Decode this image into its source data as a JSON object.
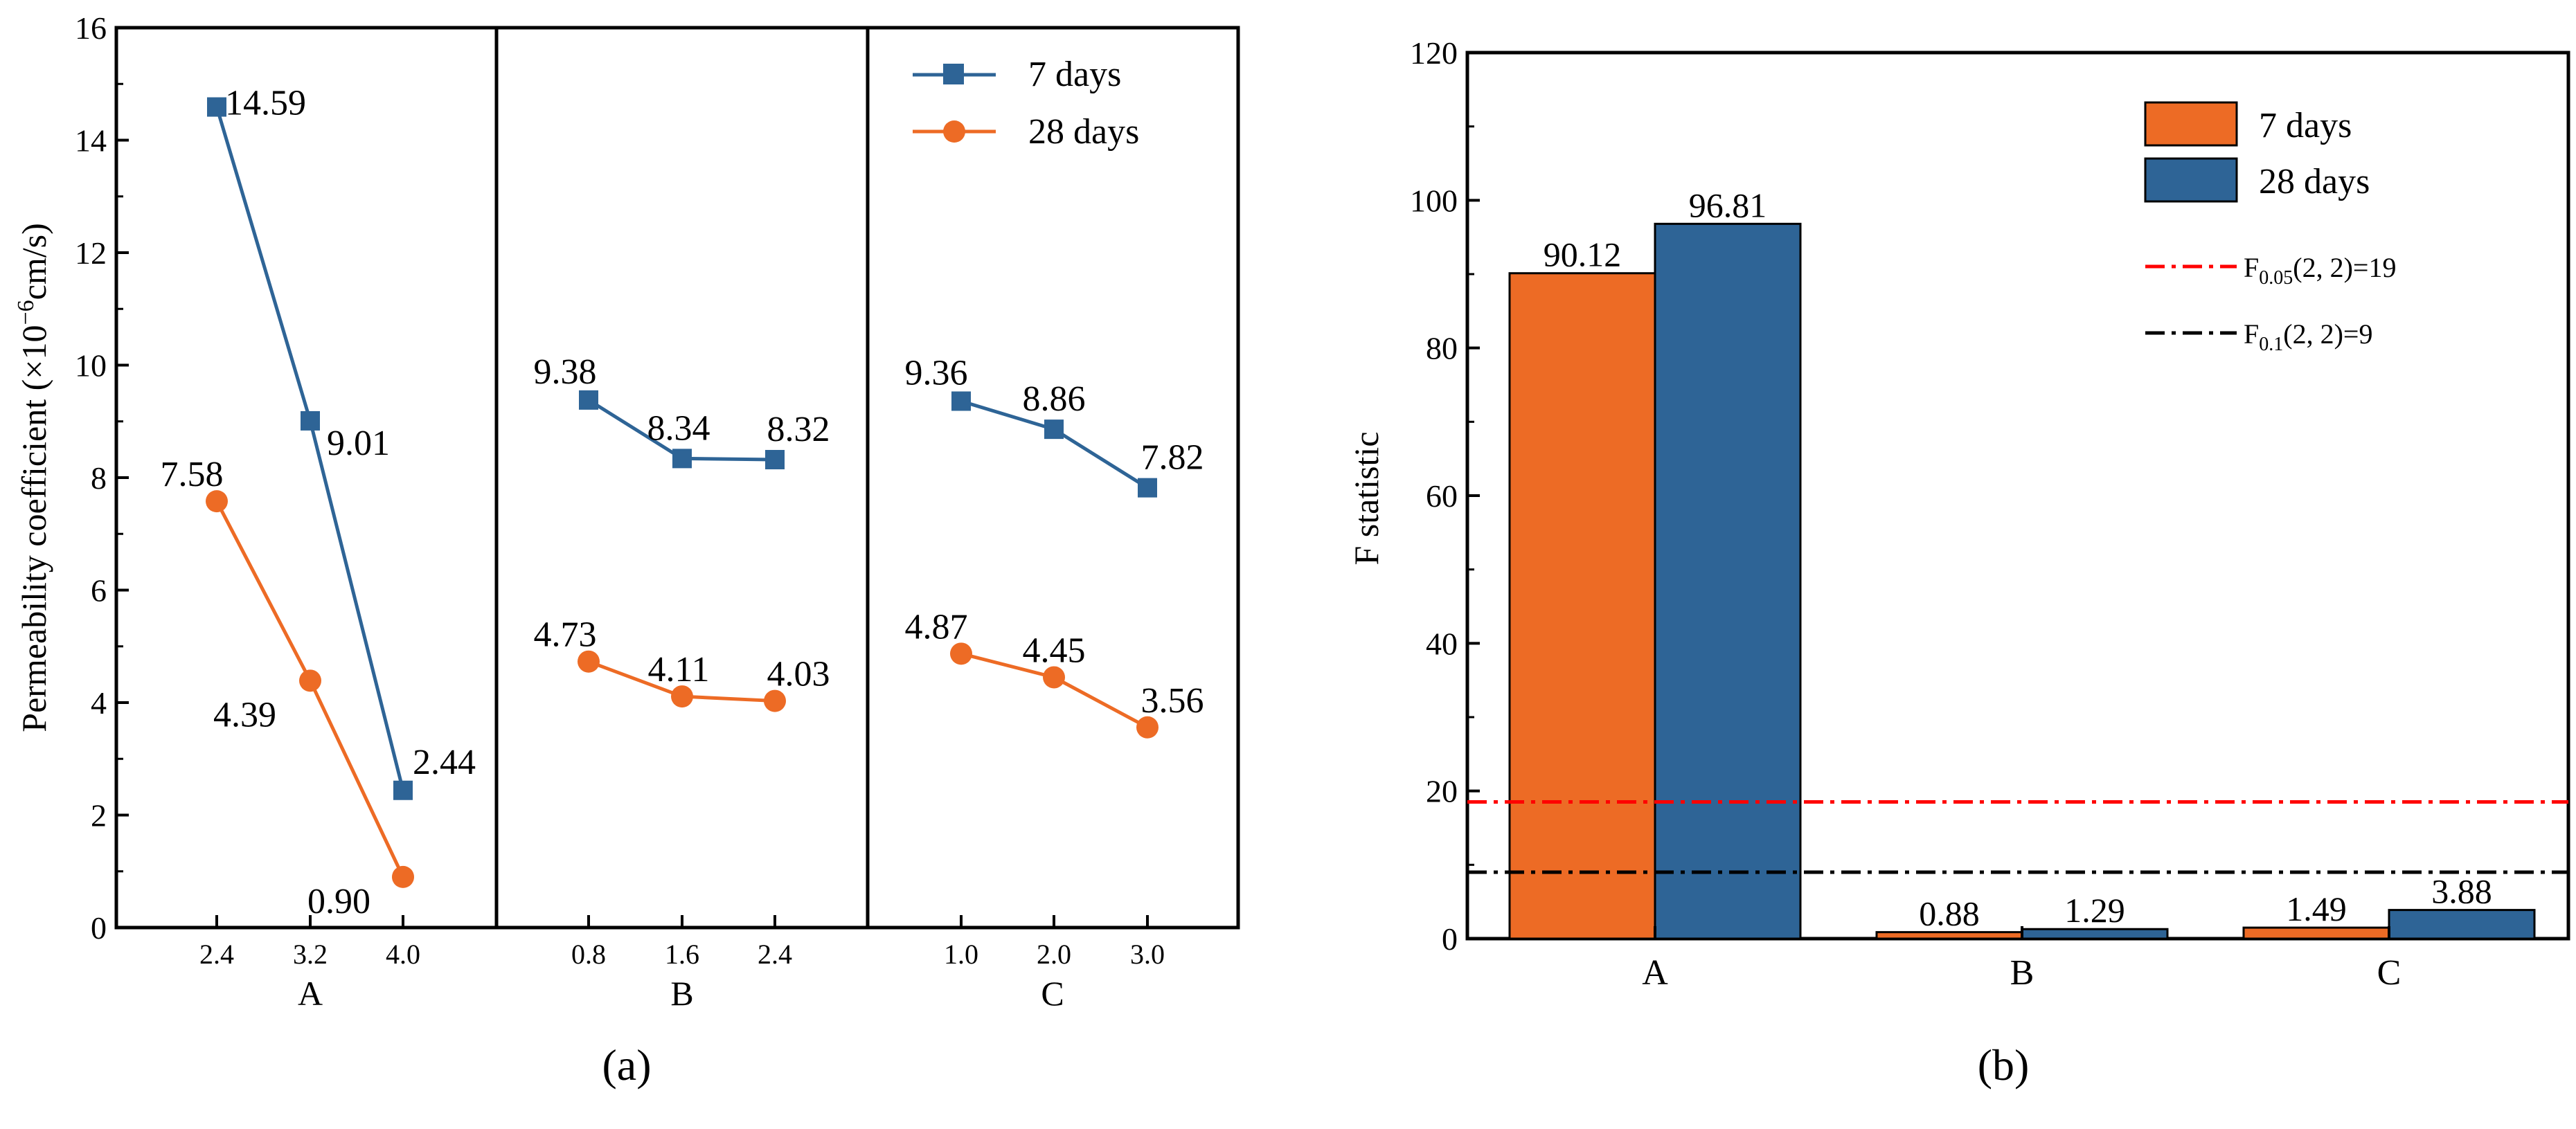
{
  "colors": {
    "blue": "#2E6496",
    "orange": "#ED6B25",
    "red_line": "#FF0000",
    "black_line": "#000000"
  },
  "chart_data": [
    {
      "panel": "(a)",
      "type": "line",
      "ylabel": "Permeability coefficient (×10",
      "ylabel_sup": "−6",
      "ylabel_tail": "cm/s)",
      "ylim": [
        0,
        16
      ],
      "yticks": [
        "0",
        "2",
        "4",
        "6",
        "8",
        "10",
        "12",
        "14",
        "16"
      ],
      "grid": false,
      "legend_placement": "top-right",
      "groups": [
        {
          "factor": "A",
          "x": [
            "2.4",
            "3.2",
            "4.0"
          ]
        },
        {
          "factor": "B",
          "x": [
            "0.8",
            "1.6",
            "2.4"
          ]
        },
        {
          "factor": "C",
          "x": [
            "1.0",
            "2.0",
            "3.0"
          ]
        }
      ],
      "series": [
        {
          "name": "7 days",
          "marker": "square",
          "color": "#2E6496",
          "labels": [
            [
              "14.59",
              "9.01",
              "2.44"
            ],
            [
              "9.38",
              "8.34",
              "8.32"
            ],
            [
              "9.36",
              "8.86",
              "7.82"
            ]
          ],
          "values": [
            [
              14.59,
              9.01,
              2.44
            ],
            [
              9.38,
              8.34,
              8.32
            ],
            [
              9.36,
              8.86,
              7.82
            ]
          ]
        },
        {
          "name": "28 days",
          "marker": "circle",
          "color": "#ED6B25",
          "labels": [
            [
              "7.58",
              "4.39",
              "0.90"
            ],
            [
              "4.73",
              "4.11",
              "4.03"
            ],
            [
              "4.87",
              "4.45",
              "3.56"
            ]
          ],
          "values": [
            [
              7.58,
              4.39,
              0.9
            ],
            [
              4.73,
              4.11,
              4.03
            ],
            [
              4.87,
              4.45,
              3.56
            ]
          ]
        }
      ]
    },
    {
      "panel": "(b)",
      "type": "bar",
      "ylabel": "F statistic",
      "ylim": [
        0,
        120
      ],
      "yticks": [
        "0",
        "20",
        "40",
        "60",
        "80",
        "100",
        "120"
      ],
      "categories": [
        "A",
        "B",
        "C"
      ],
      "grid": false,
      "legend_placement": "top-right",
      "series": [
        {
          "name": "7 days",
          "color": "#ED6B25",
          "values": [
            90.12,
            0.88,
            1.49
          ],
          "labels": [
            "90.12",
            "0.88",
            "1.49"
          ]
        },
        {
          "name": "28 days",
          "color": "#2E6496",
          "values": [
            96.81,
            1.29,
            3.88
          ],
          "labels": [
            "96.81",
            "1.29",
            "3.88"
          ]
        }
      ],
      "reference_lines": [
        {
          "base": "F",
          "sub": "0.05",
          "tail": "(2, 2)=19",
          "value": 18.51,
          "color": "#FF0000",
          "style": "dash-dot"
        },
        {
          "base": "F",
          "sub": "0.1",
          "tail": "(2, 2)=9",
          "value": 9.0,
          "color": "#000000",
          "style": "dash-dot"
        }
      ]
    }
  ]
}
